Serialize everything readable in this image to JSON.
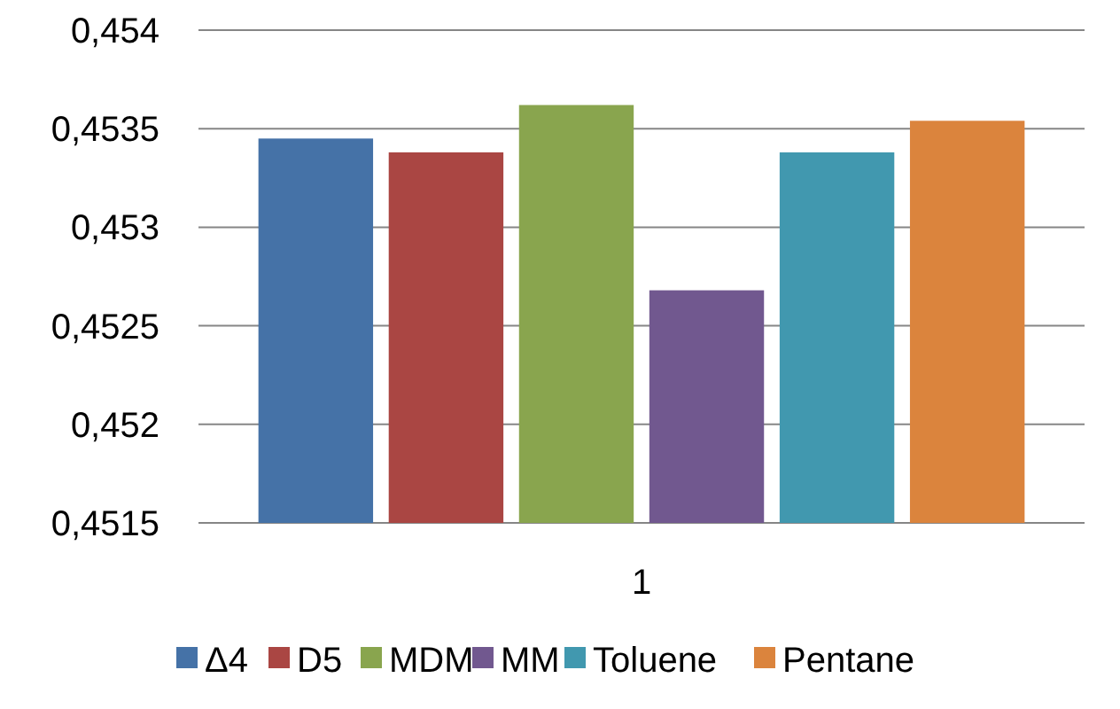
{
  "chart_data": {
    "type": "bar",
    "categories": [
      "1"
    ],
    "series": [
      {
        "name": "Δ4",
        "color": "#4572a7",
        "values": [
          0.45345
        ]
      },
      {
        "name": "D5",
        "color": "#aa4643",
        "values": [
          0.45338
        ]
      },
      {
        "name": "MDM",
        "color": "#89a54e",
        "values": [
          0.45362
        ]
      },
      {
        "name": "MM",
        "color": "#71588f",
        "values": [
          0.45268
        ]
      },
      {
        "name": "Toluene",
        "color": "#4198af",
        "values": [
          0.45338
        ]
      },
      {
        "name": "Pentane",
        "color": "#db843d",
        "values": [
          0.45354
        ]
      }
    ],
    "ylim": [
      0.4515,
      0.454
    ],
    "yticks": [
      {
        "value": 0.4515,
        "label": "0,4515"
      },
      {
        "value": 0.452,
        "label": "0,452"
      },
      {
        "value": 0.4525,
        "label": "0,4525"
      },
      {
        "value": 0.453,
        "label": "0,453"
      },
      {
        "value": 0.4535,
        "label": "0,4535"
      },
      {
        "value": 0.454,
        "label": "0,454"
      }
    ],
    "grid": "y",
    "legend": "bottom"
  }
}
